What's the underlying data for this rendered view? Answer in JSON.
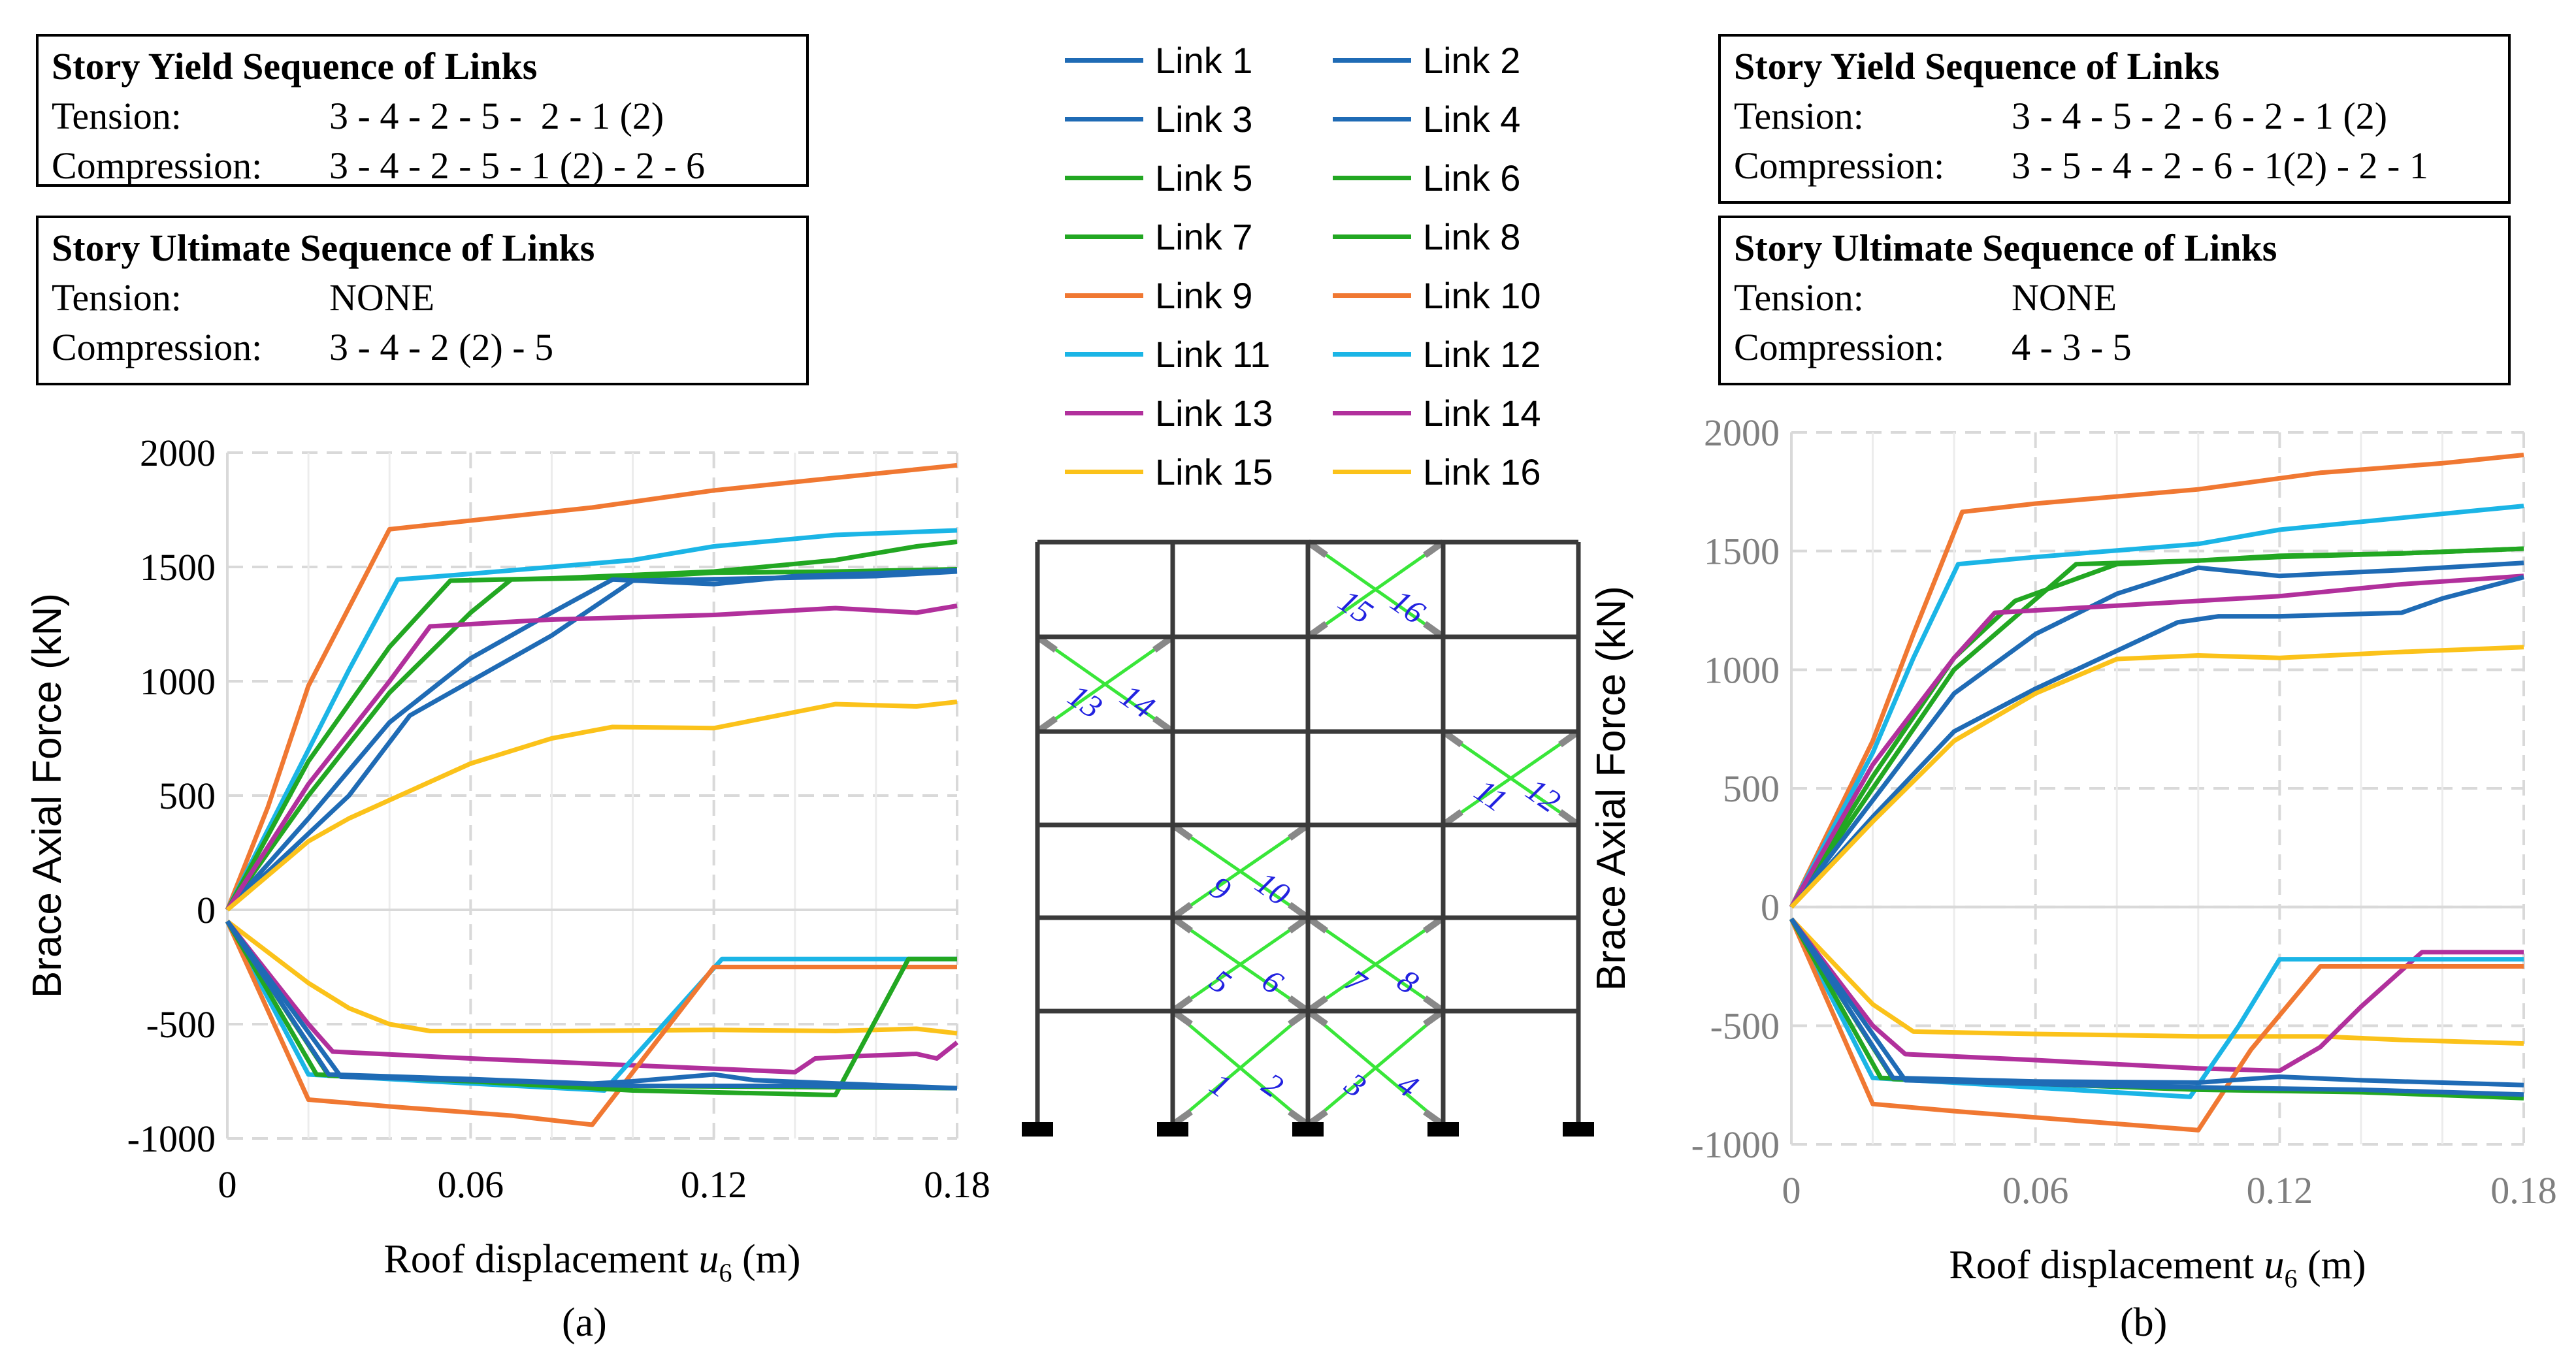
{
  "colors": {
    "blue": "#1f6bb5",
    "green": "#22a722",
    "orange": "#f07832",
    "cyan": "#1bb5e6",
    "purple": "#b1309c",
    "yellow": "#fbc21a"
  },
  "legend": [
    {
      "label": "Link 1",
      "color": "#1f6bb5"
    },
    {
      "label": "Link 2",
      "color": "#1f6bb5"
    },
    {
      "label": "Link 3",
      "color": "#1f6bb5"
    },
    {
      "label": "Link 4",
      "color": "#1f6bb5"
    },
    {
      "label": "Link 5",
      "color": "#22a722"
    },
    {
      "label": "Link 6",
      "color": "#22a722"
    },
    {
      "label": "Link 7",
      "color": "#22a722"
    },
    {
      "label": "Link 8",
      "color": "#22a722"
    },
    {
      "label": "Link 9",
      "color": "#f07832"
    },
    {
      "label": "Link 10",
      "color": "#f07832"
    },
    {
      "label": "Link 11",
      "color": "#1bb5e6"
    },
    {
      "label": "Link 12",
      "color": "#1bb5e6"
    },
    {
      "label": "Link 13",
      "color": "#b1309c"
    },
    {
      "label": "Link 14",
      "color": "#b1309c"
    },
    {
      "label": "Link 15",
      "color": "#fbc21a"
    },
    {
      "label": "Link 16",
      "color": "#fbc21a"
    }
  ],
  "panel_a": {
    "label": "(a)",
    "yield_box": {
      "title": "Story Yield Sequence of Links",
      "tension_label": "Tension:",
      "tension_value": "3 - 4 - 2 - 5 -  2 - 1 (2)",
      "compression_label": "Compression:",
      "compression_value": "3 - 4 - 2 - 5 - 1 (2) - 2 - 6"
    },
    "ultimate_box": {
      "title": "Story Ultimate Sequence of Links",
      "tension_label": "Tension:",
      "tension_value": "NONE",
      "compression_label": "Compression:",
      "compression_value": "3 - 4 - 2 (2) - 5"
    }
  },
  "panel_b": {
    "label": "(b)",
    "yield_box": {
      "title": "Story Yield Sequence of Links",
      "tension_label": "Tension:",
      "tension_value": "3 - 4 - 5 - 2 - 6 - 2 - 1 (2)",
      "compression_label": "Compression:",
      "compression_value": "3 - 5 - 4 - 2 - 6 - 1(2) - 2 - 1"
    },
    "ultimate_box": {
      "title": "Story Ultimate Sequence of Links",
      "tension_label": "Tension:",
      "tension_value": "NONE",
      "compression_label": "Compression:",
      "compression_value": "4 - 3 - 5"
    }
  },
  "frame_labels": [
    "1",
    "2",
    "3",
    "4",
    "5",
    "6",
    "7",
    "8",
    "9",
    "10",
    "11",
    "12",
    "13",
    "14",
    "15",
    "16"
  ],
  "chart_data": [
    {
      "type": "line",
      "panel": "a",
      "xlabel_prefix": "Roof displacement ",
      "xlabel_var": "u",
      "xlabel_sub": "6",
      "xlabel_suffix": " (m)",
      "ylabel": "Brace Axial Force (kN)",
      "xlim": [
        0,
        0.18
      ],
      "ylim": [
        -1000,
        2000
      ],
      "xticks": [
        0,
        0.06,
        0.12,
        0.18
      ],
      "xtick_labels": [
        "0",
        "0.06",
        "0.12",
        "0.18"
      ],
      "yticks": [
        -1000,
        -500,
        0,
        500,
        1000,
        1500,
        2000
      ],
      "ytick_labels": [
        "-1000",
        "-500",
        "0",
        "500",
        "1000",
        "1500",
        "2000"
      ],
      "series": [
        {
          "name": "Link 9",
          "color": "#f07832",
          "x": [
            0,
            0.01,
            0.02,
            0.04,
            0.09,
            0.12,
            0.15,
            0.18
          ],
          "y": [
            0,
            450,
            980,
            1665,
            1760,
            1835,
            1890,
            1945
          ]
        },
        {
          "name": "Link 11",
          "color": "#1bb5e6",
          "x": [
            0,
            0.02,
            0.03,
            0.042,
            0.06,
            0.1,
            0.12,
            0.15,
            0.18
          ],
          "y": [
            0,
            700,
            1050,
            1445,
            1470,
            1530,
            1590,
            1640,
            1660
          ]
        },
        {
          "name": "Link 7",
          "color": "#22a722",
          "x": [
            0,
            0.02,
            0.04,
            0.055,
            0.08,
            0.12,
            0.15,
            0.17,
            0.18
          ],
          "y": [
            0,
            650,
            1150,
            1440,
            1450,
            1480,
            1530,
            1590,
            1610
          ]
        },
        {
          "name": "Link 5",
          "color": "#22a722",
          "x": [
            0,
            0.02,
            0.04,
            0.06,
            0.07,
            0.1,
            0.12,
            0.15,
            0.18
          ],
          "y": [
            0,
            500,
            950,
            1300,
            1445,
            1455,
            1475,
            1480,
            1490
          ]
        },
        {
          "name": "Link 3",
          "color": "#1f6bb5",
          "x": [
            0,
            0.02,
            0.04,
            0.06,
            0.08,
            0.095,
            0.12,
            0.14,
            0.18
          ],
          "y": [
            0,
            400,
            820,
            1100,
            1300,
            1445,
            1425,
            1460,
            1485
          ]
        },
        {
          "name": "Link 1",
          "color": "#1f6bb5",
          "x": [
            0,
            0.03,
            0.045,
            0.06,
            0.08,
            0.1,
            0.13,
            0.16,
            0.18
          ],
          "y": [
            0,
            500,
            850,
            1000,
            1200,
            1440,
            1450,
            1460,
            1480
          ]
        },
        {
          "name": "Link 13",
          "color": "#b1309c",
          "x": [
            0,
            0.02,
            0.04,
            0.05,
            0.08,
            0.12,
            0.15,
            0.17,
            0.18
          ],
          "y": [
            0,
            550,
            1000,
            1240,
            1270,
            1290,
            1320,
            1300,
            1330
          ]
        },
        {
          "name": "Link 15",
          "color": "#fbc21a",
          "x": [
            0,
            0.02,
            0.03,
            0.04,
            0.06,
            0.08,
            0.095,
            0.12,
            0.15,
            0.17,
            0.18
          ],
          "y": [
            0,
            300,
            400,
            480,
            640,
            750,
            800,
            795,
            900,
            890,
            910
          ]
        },
        {
          "name": "Link 16",
          "color": "#fbc21a",
          "x": [
            0,
            0.02,
            0.03,
            0.04,
            0.05,
            0.08,
            0.12,
            0.15,
            0.17,
            0.18
          ],
          "y": [
            -50,
            -320,
            -430,
            -500,
            -530,
            -530,
            -525,
            -530,
            -520,
            -540
          ]
        },
        {
          "name": "Link 14",
          "color": "#b1309c",
          "x": [
            0,
            0.02,
            0.026,
            0.06,
            0.1,
            0.14,
            0.145,
            0.155,
            0.17,
            0.175,
            0.18
          ],
          "y": [
            -50,
            -500,
            -620,
            -650,
            -680,
            -710,
            -650,
            -640,
            -630,
            -650,
            -580
          ]
        },
        {
          "name": "Link 12",
          "color": "#1bb5e6",
          "x": [
            0,
            0.02,
            0.05,
            0.093,
            0.122,
            0.18
          ],
          "y": [
            -50,
            -720,
            -750,
            -790,
            -215,
            -215
          ]
        },
        {
          "name": "Link 10",
          "color": "#f07832",
          "x": [
            0,
            0.02,
            0.04,
            0.07,
            0.09,
            0.12,
            0.14,
            0.16,
            0.18
          ],
          "y": [
            -50,
            -830,
            -860,
            -900,
            -940,
            -250,
            -250,
            -250,
            -250
          ]
        },
        {
          "name": "Link 8",
          "color": "#22a722",
          "x": [
            0,
            0.022,
            0.06,
            0.1,
            0.15,
            0.168,
            0.18
          ],
          "y": [
            -50,
            -720,
            -750,
            -790,
            -810,
            -215,
            -215
          ]
        },
        {
          "name": "Link 6",
          "color": "#22a722",
          "x": [
            0,
            0.025,
            0.06,
            0.1,
            0.14,
            0.18
          ],
          "y": [
            -50,
            -725,
            -745,
            -770,
            -775,
            -780
          ]
        },
        {
          "name": "Link 4",
          "color": "#1f6bb5",
          "x": [
            0,
            0.025,
            0.06,
            0.09,
            0.1,
            0.12,
            0.13,
            0.18
          ],
          "y": [
            -50,
            -720,
            -740,
            -760,
            -750,
            -720,
            -745,
            -780
          ]
        },
        {
          "name": "Link 2",
          "color": "#1f6bb5",
          "x": [
            0,
            0.028,
            0.07,
            0.1,
            0.14,
            0.18
          ],
          "y": [
            -50,
            -730,
            -750,
            -770,
            -770,
            -780
          ]
        }
      ]
    },
    {
      "type": "line",
      "panel": "b",
      "xlabel_prefix": "Roof displacement ",
      "xlabel_var": "u",
      "xlabel_sub": "6",
      "xlabel_suffix": " (m)",
      "ylabel": "Brace Axial Force (kN)",
      "xlim": [
        0,
        0.18
      ],
      "ylim": [
        -1000,
        2000
      ],
      "xticks": [
        0,
        0.06,
        0.12,
        0.18
      ],
      "xtick_labels": [
        "0",
        "0.06",
        "0.12",
        "0.18"
      ],
      "yticks": [
        -1000,
        -500,
        0,
        500,
        1000,
        1500,
        2000
      ],
      "ytick_labels": [
        "-1000",
        "-500",
        "0",
        "500",
        "1000",
        "1500",
        "2000"
      ],
      "series": [
        {
          "name": "Link 9",
          "color": "#f07832",
          "x": [
            0,
            0.02,
            0.03,
            0.042,
            0.06,
            0.1,
            0.13,
            0.16,
            0.18
          ],
          "y": [
            0,
            700,
            1150,
            1665,
            1700,
            1760,
            1830,
            1870,
            1905
          ]
        },
        {
          "name": "Link 11",
          "color": "#1bb5e6",
          "x": [
            0,
            0.02,
            0.03,
            0.041,
            0.06,
            0.1,
            0.12,
            0.15,
            0.18
          ],
          "y": [
            0,
            650,
            1050,
            1445,
            1475,
            1530,
            1590,
            1640,
            1690
          ]
        },
        {
          "name": "Link 7",
          "color": "#22a722",
          "x": [
            0,
            0.02,
            0.04,
            0.055,
            0.08,
            0.12,
            0.15,
            0.18
          ],
          "y": [
            0,
            550,
            1050,
            1290,
            1445,
            1475,
            1490,
            1510
          ]
        },
        {
          "name": "Link 5",
          "color": "#22a722",
          "x": [
            0,
            0.02,
            0.04,
            0.07,
            0.1,
            0.12,
            0.15,
            0.18
          ],
          "y": [
            0,
            500,
            1000,
            1445,
            1460,
            1480,
            1490,
            1510
          ]
        },
        {
          "name": "Link 3",
          "color": "#1f6bb5",
          "x": [
            0,
            0.02,
            0.04,
            0.06,
            0.08,
            0.1,
            0.12,
            0.15,
            0.18
          ],
          "y": [
            0,
            450,
            900,
            1150,
            1320,
            1430,
            1395,
            1420,
            1450
          ]
        },
        {
          "name": "Link 13",
          "color": "#b1309c",
          "x": [
            0,
            0.02,
            0.04,
            0.05,
            0.08,
            0.12,
            0.15,
            0.18
          ],
          "y": [
            0,
            600,
            1050,
            1240,
            1270,
            1310,
            1360,
            1395
          ]
        },
        {
          "name": "Link 1",
          "color": "#1f6bb5",
          "x": [
            0,
            0.02,
            0.04,
            0.06,
            0.08,
            0.095,
            0.105,
            0.12,
            0.15,
            0.16,
            0.18
          ],
          "y": [
            0,
            380,
            740,
            920,
            1080,
            1200,
            1225,
            1225,
            1240,
            1300,
            1390
          ]
        },
        {
          "name": "Link 15",
          "color": "#fbc21a",
          "x": [
            0,
            0.02,
            0.04,
            0.06,
            0.08,
            0.1,
            0.12,
            0.15,
            0.18
          ],
          "y": [
            0,
            360,
            700,
            900,
            1045,
            1060,
            1050,
            1075,
            1095
          ]
        },
        {
          "name": "Link 16",
          "color": "#fbc21a",
          "x": [
            0,
            0.02,
            0.03,
            0.06,
            0.1,
            0.13,
            0.15,
            0.18
          ],
          "y": [
            -50,
            -410,
            -525,
            -535,
            -545,
            -545,
            -560,
            -575
          ]
        },
        {
          "name": "Link 14",
          "color": "#b1309c",
          "x": [
            0,
            0.02,
            0.028,
            0.06,
            0.1,
            0.12,
            0.13,
            0.14,
            0.155,
            0.18
          ],
          "y": [
            -50,
            -500,
            -620,
            -645,
            -680,
            -690,
            -590,
            -420,
            -190,
            -190
          ]
        },
        {
          "name": "Link 12",
          "color": "#1bb5e6",
          "x": [
            0,
            0.02,
            0.05,
            0.098,
            0.11,
            0.12,
            0.15,
            0.18
          ],
          "y": [
            -50,
            -720,
            -750,
            -800,
            -500,
            -220,
            -220,
            -220
          ]
        },
        {
          "name": "Link 10",
          "color": "#f07832",
          "x": [
            0,
            0.02,
            0.04,
            0.07,
            0.1,
            0.113,
            0.13,
            0.15,
            0.18
          ],
          "y": [
            -50,
            -830,
            -860,
            -900,
            -940,
            -600,
            -250,
            -250,
            -250
          ]
        },
        {
          "name": "Link 8",
          "color": "#22a722",
          "x": [
            0,
            0.022,
            0.06,
            0.1,
            0.14,
            0.18
          ],
          "y": [
            -50,
            -720,
            -745,
            -770,
            -780,
            -805
          ]
        },
        {
          "name": "Link 6",
          "color": "#22a722",
          "x": [
            0,
            0.025,
            0.06,
            0.1,
            0.14,
            0.18
          ],
          "y": [
            -50,
            -725,
            -745,
            -765,
            -775,
            -800
          ]
        },
        {
          "name": "Link 4",
          "color": "#1f6bb5",
          "x": [
            0,
            0.025,
            0.06,
            0.1,
            0.12,
            0.14,
            0.18
          ],
          "y": [
            -50,
            -720,
            -735,
            -740,
            -715,
            -730,
            -750
          ]
        },
        {
          "name": "Link 2",
          "color": "#1f6bb5",
          "x": [
            0,
            0.028,
            0.07,
            0.1,
            0.14,
            0.18
          ],
          "y": [
            -50,
            -730,
            -750,
            -760,
            -770,
            -790
          ]
        }
      ]
    }
  ]
}
